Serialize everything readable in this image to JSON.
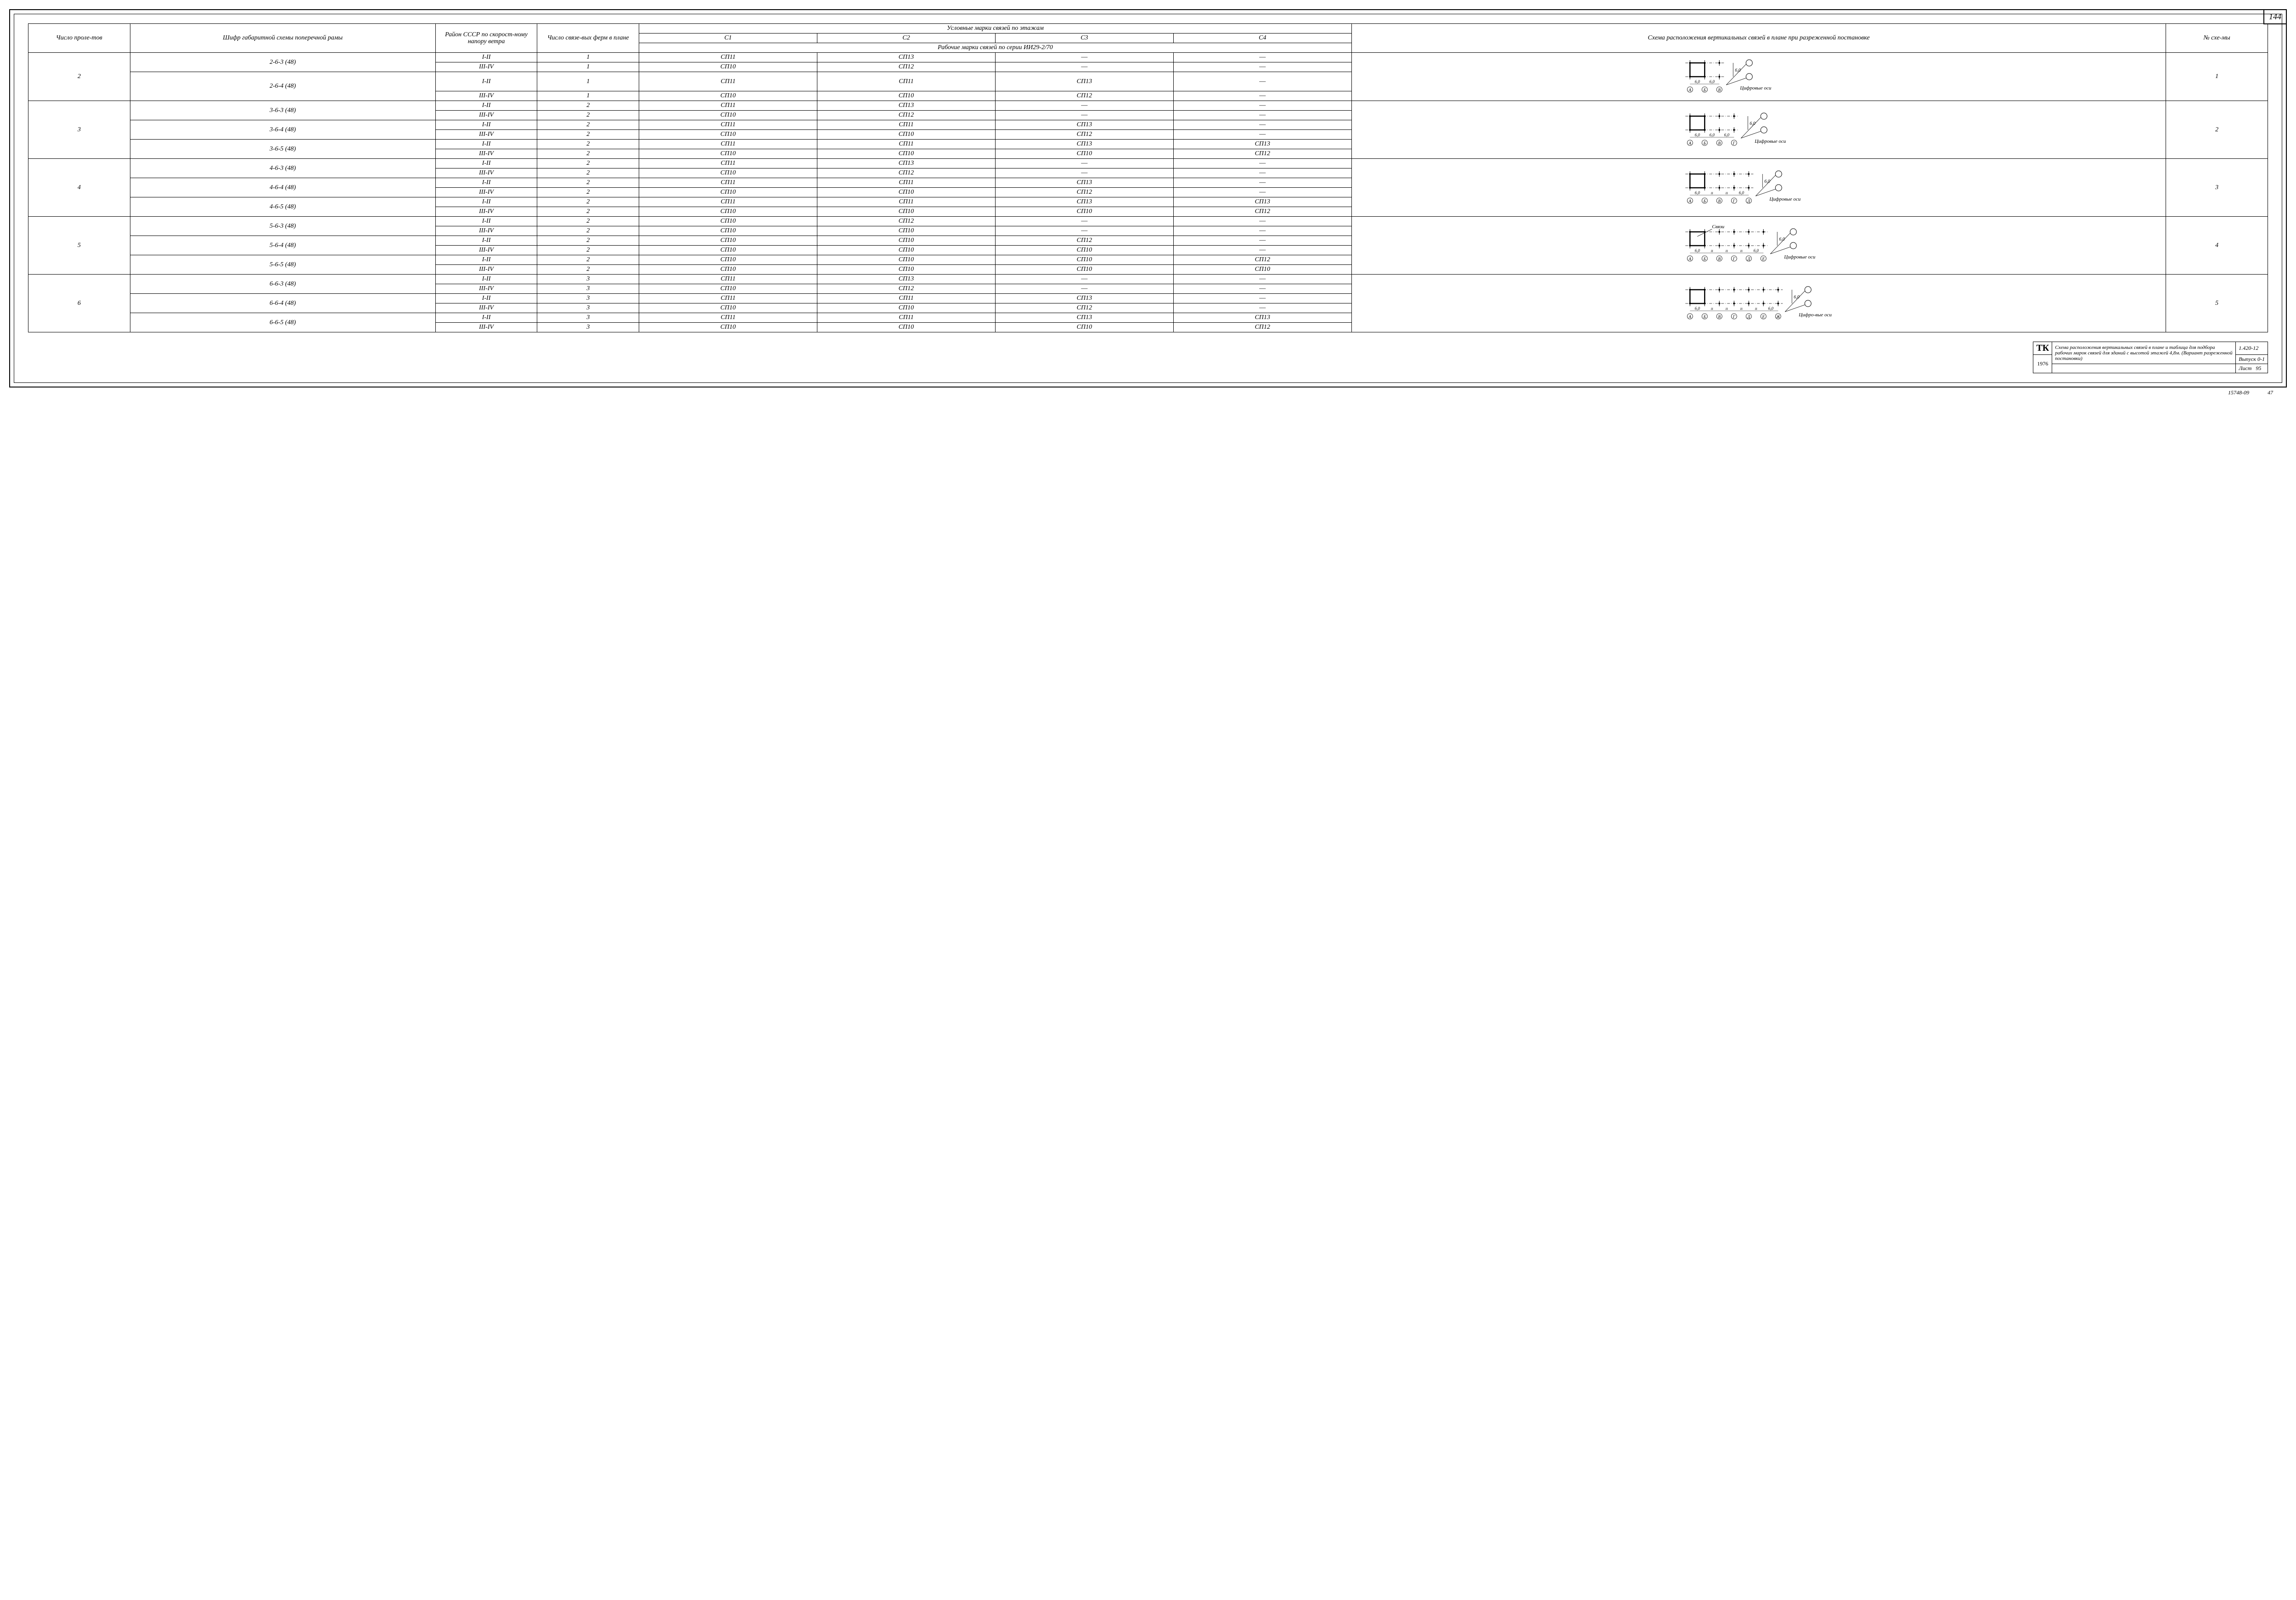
{
  "page_number": "144",
  "headers": {
    "col1": "Число проле-тов",
    "col2": "Шифр габаритной схемы поперечной рамы",
    "col3": "Район СССР по скорост-ному напору ветра",
    "col4": "Число связе-вых ферм в плане",
    "col5_top": "Условные марки связей по этажам",
    "col5_c1": "С1",
    "col5_c2": "С2",
    "col5_c3": "С3",
    "col5_c4": "С4",
    "col5_sub": "Рабочие марки связей по серии ИИ29-2/70",
    "col6": "Схема расположения вертикальных связей в плане при разреженной постановке",
    "col7": "№ схе-мы"
  },
  "groups": [
    {
      "spans": "2",
      "scheme_no": "1",
      "scheme": {
        "axes": [
          "А",
          "Б",
          "В"
        ],
        "label": "Цифровые оси",
        "dim": "6,0",
        "between": "6,0"
      },
      "blocks": [
        {
          "code": "2-6-3 (48)",
          "rows": [
            {
              "r": "I-II",
              "n": "1",
              "c1": "СП11",
              "c2": "СП13",
              "c3": "—",
              "c4": "—"
            },
            {
              "r": "III-IV",
              "n": "1",
              "c1": "СП10",
              "c2": "СП12",
              "c3": "—",
              "c4": "—"
            }
          ]
        },
        {
          "code": "2-6-4 (48)",
          "rows": [
            {
              "r": "I-II",
              "n": "1",
              "c1": "СП11",
              "c2": "СП11",
              "c3": "СП13",
              "c4": "—"
            },
            {
              "r": "III-IV",
              "n": "1",
              "c1": "СП10",
              "c2": "СП10",
              "c3": "СП12",
              "c4": "—"
            }
          ]
        }
      ]
    },
    {
      "spans": "3",
      "scheme_no": "2",
      "scheme": {
        "axes": [
          "А",
          "Б",
          "В",
          "Г"
        ],
        "label": "Цифровые оси",
        "dim": "6,0",
        "between": "6,0"
      },
      "blocks": [
        {
          "code": "3-6-3 (48)",
          "rows": [
            {
              "r": "I-II",
              "n": "2",
              "c1": "СП11",
              "c2": "СП13",
              "c3": "—",
              "c4": "—"
            },
            {
              "r": "III-IV",
              "n": "2",
              "c1": "СП10",
              "c2": "СП12",
              "c3": "—",
              "c4": "—"
            }
          ]
        },
        {
          "code": "3-6-4 (48)",
          "rows": [
            {
              "r": "I-II",
              "n": "2",
              "c1": "СП11",
              "c2": "СП11",
              "c3": "СП13",
              "c4": "—"
            },
            {
              "r": "III-IV",
              "n": "2",
              "c1": "СП10",
              "c2": "СП10",
              "c3": "СП12",
              "c4": "—"
            }
          ]
        },
        {
          "code": "3-6-5 (48)",
          "rows": [
            {
              "r": "I-II",
              "n": "2",
              "c1": "СП11",
              "c2": "СП11",
              "c3": "СП13",
              "c4": "СП13"
            },
            {
              "r": "III-IV",
              "n": "2",
              "c1": "СП10",
              "c2": "СП10",
              "c3": "СП10",
              "c4": "СП12"
            }
          ]
        }
      ]
    },
    {
      "spans": "4",
      "scheme_no": "3",
      "scheme": {
        "axes": [
          "А",
          "Б",
          "В",
          "Г",
          "Д"
        ],
        "label": "Цифровые оси",
        "dim": "6,0",
        "between": "ıı"
      },
      "blocks": [
        {
          "code": "4-6-3 (48)",
          "rows": [
            {
              "r": "I-II",
              "n": "2",
              "c1": "СП11",
              "c2": "СП13",
              "c3": "—",
              "c4": "—"
            },
            {
              "r": "III-IV",
              "n": "2",
              "c1": "СП10",
              "c2": "СП12",
              "c3": "—",
              "c4": "—"
            }
          ]
        },
        {
          "code": "4-6-4 (48)",
          "rows": [
            {
              "r": "I-II",
              "n": "2",
              "c1": "СП11",
              "c2": "СП11",
              "c3": "СП13",
              "c4": "—"
            },
            {
              "r": "III-IV",
              "n": "2",
              "c1": "СП10",
              "c2": "СП10",
              "c3": "СП12",
              "c4": "—"
            }
          ]
        },
        {
          "code": "4-6-5 (48)",
          "rows": [
            {
              "r": "I-II",
              "n": "2",
              "c1": "СП11",
              "c2": "СП11",
              "c3": "СП13",
              "c4": "СП13"
            },
            {
              "r": "III-IV",
              "n": "2",
              "c1": "СП10",
              "c2": "СП10",
              "c3": "СП10",
              "c4": "СП12"
            }
          ]
        }
      ]
    },
    {
      "spans": "5",
      "scheme_no": "4",
      "scheme": {
        "axes": [
          "А",
          "Б",
          "В",
          "Г",
          "Д",
          "Е"
        ],
        "label": "Цифровые оси",
        "extra": "Связи",
        "dim": "6,0",
        "between": "ıı"
      },
      "blocks": [
        {
          "code": "5-6-3 (48)",
          "rows": [
            {
              "r": "I-II",
              "n": "2",
              "c1": "СП10",
              "c2": "СП12",
              "c3": "—",
              "c4": "—"
            },
            {
              "r": "III-IV",
              "n": "2",
              "c1": "СП10",
              "c2": "СП10",
              "c3": "—",
              "c4": "—"
            }
          ]
        },
        {
          "code": "5-6-4 (48)",
          "rows": [
            {
              "r": "I-II",
              "n": "2",
              "c1": "СП10",
              "c2": "СП10",
              "c3": "СП12",
              "c4": "—"
            },
            {
              "r": "III-IV",
              "n": "2",
              "c1": "СП10",
              "c2": "СП10",
              "c3": "СП10",
              "c4": "—"
            }
          ]
        },
        {
          "code": "5-6-5 (48)",
          "rows": [
            {
              "r": "I-II",
              "n": "2",
              "c1": "СП10",
              "c2": "СП10",
              "c3": "СП10",
              "c4": "СП12"
            },
            {
              "r": "III-IV",
              "n": "2",
              "c1": "СП10",
              "c2": "СП10",
              "c3": "СП10",
              "c4": "СП10"
            }
          ]
        }
      ]
    },
    {
      "spans": "6",
      "scheme_no": "5",
      "scheme": {
        "axes": [
          "А",
          "Б",
          "В",
          "Г",
          "Д",
          "Е",
          "Ж"
        ],
        "label": "Цифро-вые оси",
        "dim": "6,0",
        "between": "ıı"
      },
      "blocks": [
        {
          "code": "6-6-3 (48)",
          "rows": [
            {
              "r": "I-II",
              "n": "3",
              "c1": "СП11",
              "c2": "СП13",
              "c3": "—",
              "c4": "—"
            },
            {
              "r": "III-IV",
              "n": "3",
              "c1": "СП10",
              "c2": "СП12",
              "c3": "—",
              "c4": "—"
            }
          ]
        },
        {
          "code": "6-6-4 (48)",
          "rows": [
            {
              "r": "I-II",
              "n": "3",
              "c1": "СП11",
              "c2": "СП11",
              "c3": "СП13",
              "c4": "—"
            },
            {
              "r": "III-IV",
              "n": "3",
              "c1": "СП10",
              "c2": "СП10",
              "c3": "СП12",
              "c4": "—"
            }
          ]
        },
        {
          "code": "6-6-5 (48)",
          "rows": [
            {
              "r": "I-II",
              "n": "3",
              "c1": "СП11",
              "c2": "СП11",
              "c3": "СП13",
              "c4": "СП13"
            },
            {
              "r": "III-IV",
              "n": "3",
              "c1": "СП10",
              "c2": "СП10",
              "c3": "СП10",
              "c4": "СП12"
            }
          ]
        }
      ]
    }
  ],
  "titleblock": {
    "tk": "ТК",
    "year": "1976",
    "desc": "Схема расположения вертикальных связей в плане и таблица для подбора рабочих марок связей для зданий с высотой этажей 4,8м. (Вариант разреженной постановки)",
    "series": "1.420-12",
    "issue": "Выпуск 0-1",
    "sheet_label": "Лист",
    "sheet": "95"
  },
  "footer": {
    "code1": "15748-09",
    "code2": "47"
  }
}
